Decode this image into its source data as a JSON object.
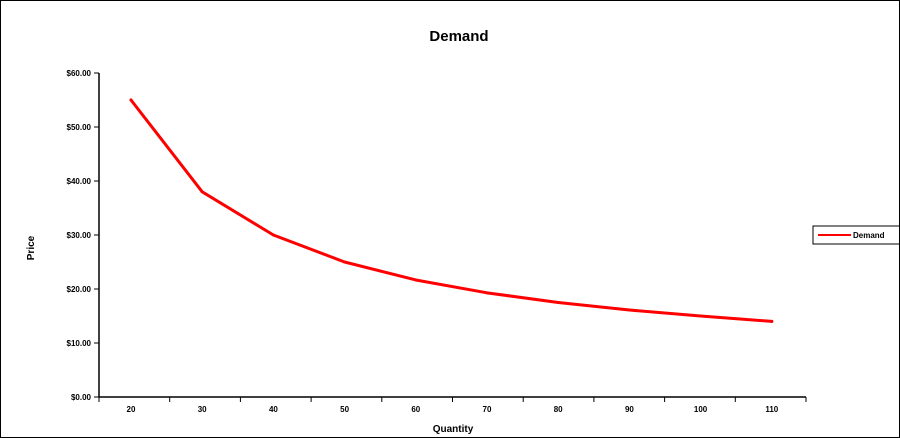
{
  "chart_data": {
    "type": "line",
    "title": "Demand",
    "xlabel": "Quantity",
    "ylabel": "Price",
    "categories": [
      "20",
      "30",
      "40",
      "50",
      "60",
      "70",
      "80",
      "90",
      "100",
      "110"
    ],
    "y_ticks": [
      "$0.00",
      "$10.00",
      "$20.00",
      "$30.00",
      "$40.00",
      "$50.00",
      "$60.00"
    ],
    "ylim": [
      0,
      60
    ],
    "grid": false,
    "legend_position": "right",
    "series": [
      {
        "name": "Demand",
        "color": "#ff0000",
        "values": [
          55,
          38,
          30,
          25,
          21.67,
          19.29,
          17.5,
          16.11,
          15,
          14
        ]
      }
    ]
  }
}
